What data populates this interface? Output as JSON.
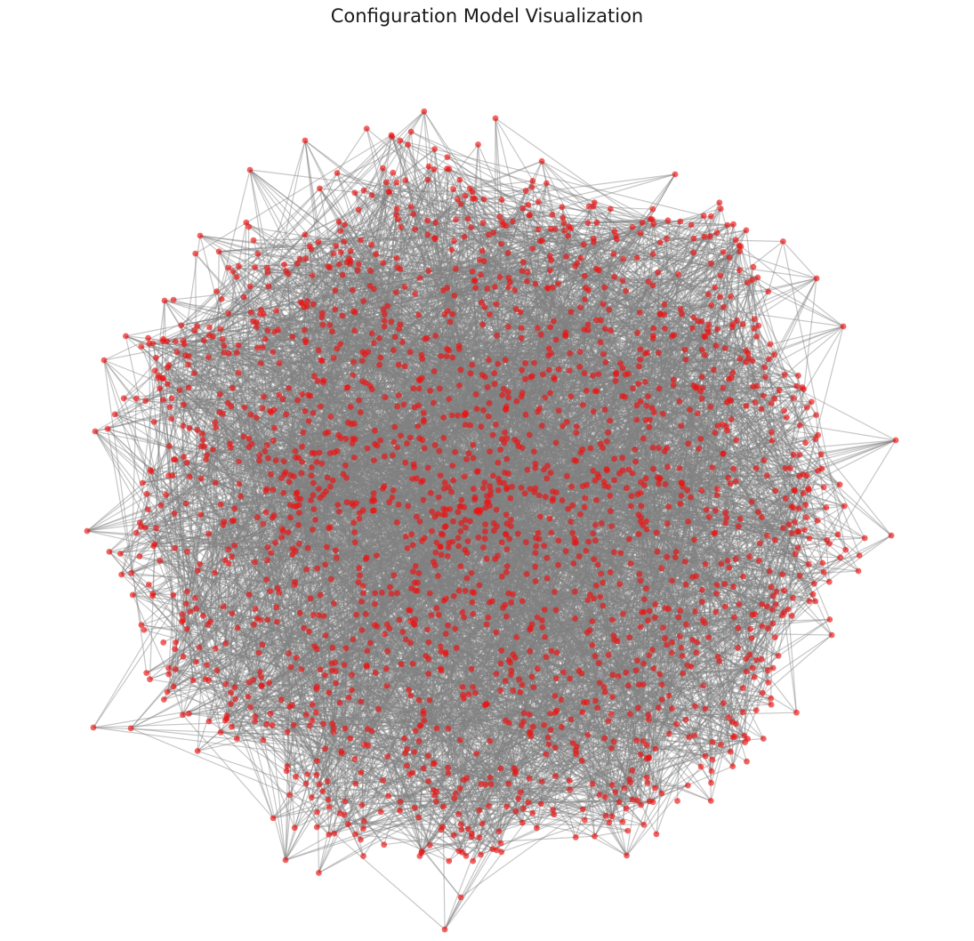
{
  "figure": {
    "title": "Configuration Model Visualization"
  },
  "graph": {
    "type": "network",
    "model": "configuration",
    "node_color": "#ee1111",
    "node_opacity": 0.65,
    "edge_color": "#808080",
    "edge_opacity": 0.45,
    "axes_visible": false,
    "node_count_estimate": 2000
  }
}
